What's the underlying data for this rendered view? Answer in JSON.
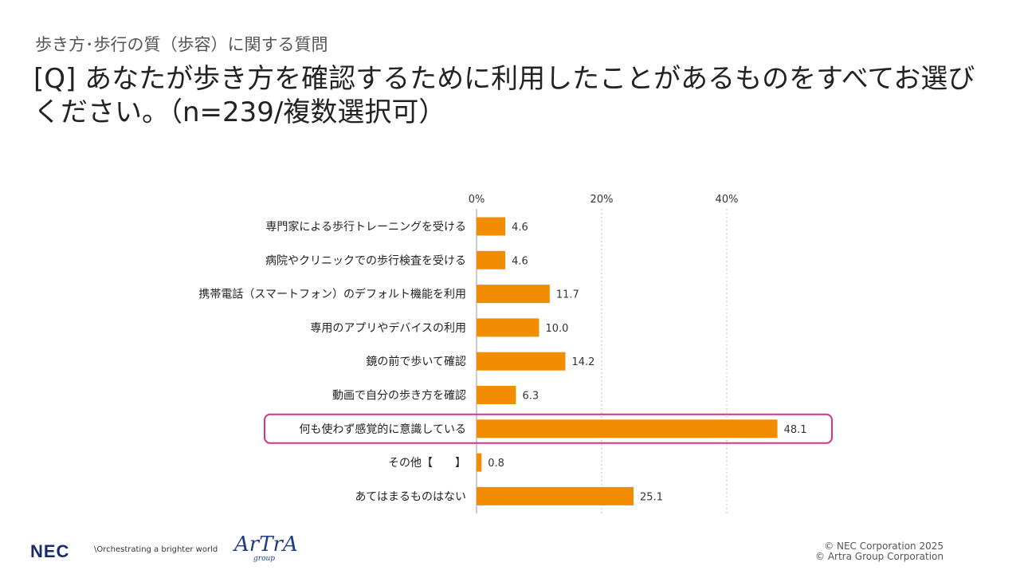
{
  "header": {
    "subtitle": "歩き方･歩行の質（歩容）に関する質問",
    "title": "[Q] あなたが歩き方を確認するために利用したことがあるものをすべてお選びください。（n=239/複数選択可）"
  },
  "chart_data": {
    "type": "bar",
    "orientation": "horizontal",
    "categories": [
      "専門家による歩行トレーニングを受ける",
      "病院やクリニックでの歩行検査を受ける",
      "携帯電話（スマートフォン）のデフォルト機能を利用",
      "専用のアプリやデバイスの利用",
      "鏡の前で歩いて確認",
      "動画で自分の歩き方を確認",
      "何も使わず感覚的に意識している",
      "その他【　　】",
      "あてはまるものはない"
    ],
    "values": [
      4.6,
      4.6,
      11.7,
      10.0,
      14.2,
      6.3,
      48.1,
      0.8,
      25.1
    ],
    "value_labels": [
      "4.6",
      "4.6",
      "11.7",
      "10.0",
      "14.2",
      "6.3",
      "48.1",
      "0.8",
      "25.1"
    ],
    "xlim": [
      0,
      50
    ],
    "xticks": [
      "0%",
      "20%",
      "40%"
    ],
    "xtick_values": [
      0,
      20,
      40
    ],
    "grid": true,
    "bar_color": "#f28c00",
    "highlight_index": 6,
    "highlight_color": "#d63384"
  },
  "footer": {
    "logo": "NEC",
    "tagline": "\\Orchestrating a brighter world",
    "brand": "ArTrA",
    "brand_sub": "group",
    "copyright_1": "© NEC Corporation 2025",
    "copyright_2": "© Artra Group Corporation"
  }
}
